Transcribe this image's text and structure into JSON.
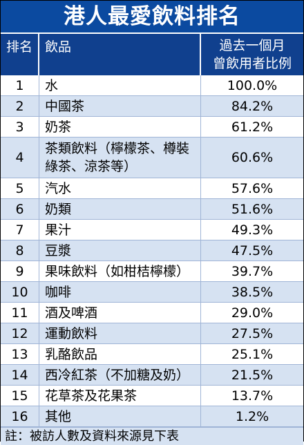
{
  "title": "港人最愛飲料排名",
  "header": {
    "rank": "排名",
    "drink": "飲品",
    "pct_line1": "過去一個月",
    "pct_line2": "曾飲用者比例"
  },
  "rows": [
    {
      "rank": "1",
      "drink": "水",
      "pct": "100.0%"
    },
    {
      "rank": "2",
      "drink": "中國茶",
      "pct": "84.2%"
    },
    {
      "rank": "3",
      "drink": "奶茶",
      "pct": "61.2%"
    },
    {
      "rank": "4",
      "drink": "茶類飲料（檸檬茶、樽裝綠茶、涼茶等）",
      "pct": "60.6%"
    },
    {
      "rank": "5",
      "drink": "汽水",
      "pct": "57.6%"
    },
    {
      "rank": "6",
      "drink": "奶類",
      "pct": "51.6%"
    },
    {
      "rank": "7",
      "drink": "果汁",
      "pct": "49.3%"
    },
    {
      "rank": "8",
      "drink": "豆漿",
      "pct": "47.5%"
    },
    {
      "rank": "9",
      "drink": "果味飲料（如柑桔檸檬）",
      "pct": "39.7%"
    },
    {
      "rank": "10",
      "drink": "咖啡",
      "pct": "38.5%"
    },
    {
      "rank": "11",
      "drink": "酒及啤酒",
      "pct": "29.0%"
    },
    {
      "rank": "12",
      "drink": "運動飲料",
      "pct": "27.5%"
    },
    {
      "rank": "13",
      "drink": "乳酪飲品",
      "pct": "25.1%"
    },
    {
      "rank": "14",
      "drink": "西冷紅茶（不加糖及奶）",
      "pct": "21.5%"
    },
    {
      "rank": "15",
      "drink": "花草茶及花果茶",
      "pct": "13.7%"
    },
    {
      "rank": "16",
      "drink": "其他",
      "pct": "1.2%"
    }
  ],
  "footer": "註：被訪人數及資料來源見下表",
  "colors": {
    "title_bg": "#0b4aa0",
    "header_bg": "#10408e",
    "stripe": "#d6e2f2"
  }
}
